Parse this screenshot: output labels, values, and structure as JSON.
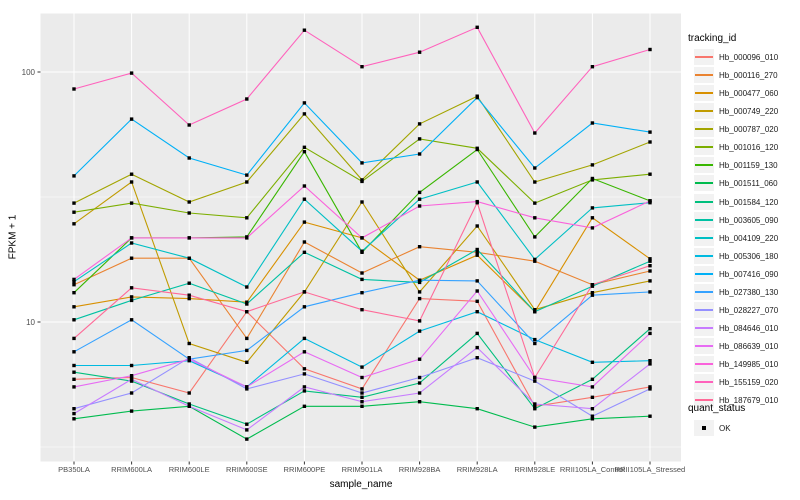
{
  "figure": {
    "background": "#FFFFFF",
    "panel_background": "#EBEBEB",
    "grid_color": "#FFFFFF",
    "tick_color": "#333333",
    "point_color": "#000000"
  },
  "chart_data": {
    "type": "line",
    "title": "",
    "xlabel": "sample_name",
    "ylabel": "FPKM + 1",
    "y_scale": "log10",
    "y_ticks": [
      100,
      10
    ],
    "ylim": [
      2.8,
      180
    ],
    "grid": "on",
    "legend_position": "right",
    "legend_title": "tracking_id",
    "legend2_title": "quant_status",
    "legend2_items": [
      "OK"
    ],
    "categories": [
      "PB350LA",
      "RRIM600LA",
      "RRIM600LE",
      "RRIM600SE",
      "RRIM600PE",
      "RRIM901LA",
      "RRIM928BA",
      "RRIM928LA",
      "RRIM928LE",
      "RRII105LA_Control",
      "RRII105LA_Stressed"
    ],
    "series": [
      {
        "name": "Hb_000096_010",
        "color": "#F8766D",
        "values": [
          5.9,
          6.0,
          5.2,
          11.0,
          6.5,
          5.4,
          12.4,
          12.1,
          4.6,
          5.0,
          5.5
        ]
      },
      {
        "name": "Hb_000116_270",
        "color": "#EA8331",
        "values": [
          14.1,
          18.0,
          18.0,
          8.6,
          20.9,
          15.7,
          20.0,
          19.0,
          17.5,
          14.1,
          16.0
        ]
      },
      {
        "name": "Hb_000477_060",
        "color": "#D89000",
        "values": [
          11.5,
          12.6,
          12.4,
          12.0,
          25.1,
          21.7,
          14.7,
          18.5,
          11.0,
          26.1,
          17.9
        ]
      },
      {
        "name": "Hb_000749_220",
        "color": "#C09B00",
        "values": [
          24.7,
          36.3,
          8.2,
          6.9,
          13.2,
          30.2,
          13.2,
          24.2,
          11.2,
          13.1,
          14.6
        ]
      },
      {
        "name": "Hb_000787_020",
        "color": "#A3A500",
        "values": [
          29.9,
          39.0,
          30.2,
          36.3,
          68.0,
          37.0,
          62.0,
          80.0,
          36.3,
          42.5,
          52.5
        ]
      },
      {
        "name": "Hb_001016_120",
        "color": "#7CAE00",
        "values": [
          27.5,
          29.9,
          27.3,
          26.1,
          50.0,
          36.5,
          54.0,
          49.5,
          29.9,
          37.0,
          39.0
        ]
      },
      {
        "name": "Hb_001159_130",
        "color": "#39B600",
        "values": [
          13.1,
          21.7,
          21.7,
          21.9,
          48.0,
          19.0,
          33.0,
          49.0,
          21.9,
          37.5,
          30.5
        ]
      },
      {
        "name": "Hb_001511_060",
        "color": "#00BB4E",
        "values": [
          4.1,
          4.4,
          4.6,
          3.4,
          4.6,
          4.6,
          4.8,
          4.5,
          3.8,
          4.1,
          4.2
        ]
      },
      {
        "name": "Hb_001584_120",
        "color": "#00BF7D",
        "values": [
          6.3,
          5.8,
          4.7,
          3.9,
          5.3,
          5.0,
          5.7,
          9.0,
          4.5,
          5.9,
          9.4
        ]
      },
      {
        "name": "Hb_003605_090",
        "color": "#00C1A3",
        "values": [
          10.2,
          12.2,
          14.3,
          11.8,
          19.0,
          14.8,
          14.4,
          19.5,
          11.0,
          13.9,
          17.5
        ]
      },
      {
        "name": "Hb_004109_220",
        "color": "#00BFC4",
        "values": [
          14.5,
          20.7,
          18.0,
          13.8,
          31.0,
          19.2,
          31.0,
          36.3,
          17.8,
          28.6,
          30.0
        ]
      },
      {
        "name": "Hb_005306_180",
        "color": "#00BAE0",
        "values": [
          6.7,
          6.7,
          7.0,
          5.5,
          8.6,
          6.6,
          9.2,
          11.0,
          8.5,
          6.9,
          7.0
        ]
      },
      {
        "name": "Hb_007416_090",
        "color": "#00B0F6",
        "values": [
          38.4,
          64.8,
          45.3,
          38.7,
          75.2,
          43.3,
          47.0,
          79.0,
          41.3,
          62.5,
          57.5
        ]
      },
      {
        "name": "Hb_027380_130",
        "color": "#35A2FF",
        "values": [
          7.6,
          10.2,
          7.1,
          7.7,
          11.5,
          13.1,
          14.7,
          14.6,
          8.2,
          12.8,
          13.2
        ]
      },
      {
        "name": "Hb_028227_070",
        "color": "#9590FF",
        "values": [
          4.5,
          5.2,
          7.2,
          5.4,
          6.2,
          5.2,
          6.0,
          7.2,
          5.8,
          4.2,
          5.4
        ]
      },
      {
        "name": "Hb_084646_010",
        "color": "#C77CFF",
        "values": [
          4.3,
          5.9,
          4.6,
          3.7,
          5.5,
          4.8,
          5.2,
          7.9,
          4.7,
          4.5,
          6.8
        ]
      },
      {
        "name": "Hb_086639_010",
        "color": "#E76BF3",
        "values": [
          5.5,
          6.1,
          7.1,
          5.5,
          7.6,
          6.0,
          7.1,
          13.3,
          6.0,
          5.5,
          9.0
        ]
      },
      {
        "name": "Hb_149985_010",
        "color": "#FA62DB",
        "values": [
          14.8,
          21.7,
          21.7,
          21.7,
          35.0,
          21.7,
          29.1,
          30.3,
          26.1,
          23.8,
          30.5
        ]
      },
      {
        "name": "Hb_155159_020",
        "color": "#FF62BC",
        "values": [
          85.5,
          99.0,
          61.4,
          78.0,
          147.0,
          105.0,
          120.0,
          151.0,
          57.0,
          105.0,
          123.0
        ]
      },
      {
        "name": "Hb_187679_010",
        "color": "#FF6A98",
        "values": [
          8.6,
          13.7,
          12.8,
          11.0,
          13.2,
          11.2,
          10.1,
          30.0,
          6.0,
          14.1,
          16.8
        ]
      }
    ]
  }
}
